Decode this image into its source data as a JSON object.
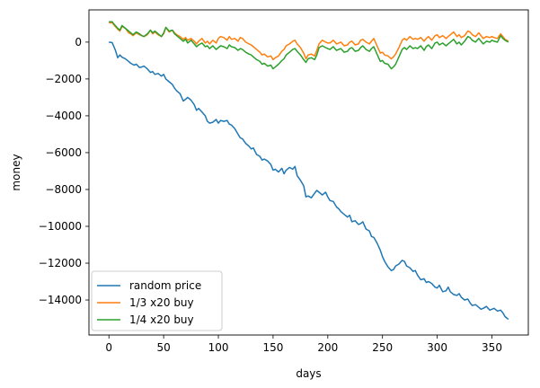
{
  "chart_data": {
    "type": "line",
    "title": "",
    "xlabel": "days",
    "ylabel": "money",
    "xlim": [
      -18.25,
      383.25
    ],
    "ylim": [
      -15900,
      1750
    ],
    "xticks": [
      0,
      50,
      100,
      150,
      200,
      250,
      300,
      350
    ],
    "yticks": [
      -14000,
      -12000,
      -10000,
      -8000,
      -6000,
      -4000,
      -2000,
      0
    ],
    "grid": false,
    "legend": {
      "placement": "lower-left"
    },
    "series": [
      {
        "name": "random price",
        "color": "#1f77b4",
        "x": [
          0,
          3,
          6,
          8,
          10,
          12,
          15,
          18,
          20,
          23,
          25,
          28,
          30,
          32,
          35,
          38,
          40,
          42,
          45,
          48,
          50,
          52,
          55,
          58,
          60,
          62,
          65,
          68,
          70,
          72,
          75,
          78,
          80,
          82,
          85,
          88,
          90,
          92,
          95,
          98,
          100,
          102,
          105,
          108,
          110,
          112,
          115,
          118,
          120,
          122,
          125,
          128,
          130,
          132,
          135,
          138,
          140,
          142,
          145,
          148,
          150,
          152,
          155,
          158,
          160,
          162,
          165,
          168,
          170,
          172,
          175,
          178,
          180,
          182,
          185,
          188,
          190,
          192,
          195,
          198,
          200,
          202,
          205,
          208,
          210,
          212,
          215,
          218,
          220,
          222,
          225,
          228,
          230,
          232,
          235,
          238,
          240,
          242,
          245,
          248,
          250,
          252,
          255,
          258,
          260,
          262,
          265,
          268,
          270,
          272,
          275,
          278,
          280,
          282,
          285,
          288,
          290,
          292,
          295,
          298,
          300,
          302,
          305,
          308,
          310,
          312,
          315,
          318,
          320,
          322,
          325,
          328,
          330,
          332,
          335,
          338,
          340,
          342,
          345,
          348,
          350,
          352,
          355,
          358,
          360,
          362,
          365
        ],
        "y": [
          0,
          -30,
          -450,
          -850,
          -700,
          -820,
          -900,
          -1050,
          -1150,
          -1250,
          -1200,
          -1380,
          -1350,
          -1300,
          -1450,
          -1650,
          -1600,
          -1750,
          -1700,
          -1850,
          -1750,
          -2000,
          -2150,
          -2300,
          -2500,
          -2650,
          -2800,
          -3200,
          -3100,
          -3000,
          -3150,
          -3400,
          -3700,
          -3600,
          -3800,
          -4000,
          -4300,
          -4400,
          -4350,
          -4200,
          -4400,
          -4250,
          -4300,
          -4250,
          -4450,
          -4500,
          -4700,
          -5000,
          -5200,
          -5250,
          -5500,
          -5650,
          -5800,
          -5750,
          -6100,
          -6200,
          -6400,
          -6350,
          -6450,
          -6650,
          -6950,
          -6900,
          -7050,
          -6850,
          -7150,
          -6950,
          -6800,
          -6900,
          -6750,
          -7250,
          -7500,
          -7800,
          -8400,
          -8350,
          -8450,
          -8200,
          -8050,
          -8150,
          -8300,
          -8150,
          -8400,
          -8600,
          -8650,
          -8950,
          -9050,
          -9200,
          -9350,
          -9500,
          -9400,
          -9750,
          -9700,
          -9900,
          -9850,
          -9750,
          -10150,
          -10250,
          -10550,
          -10600,
          -10900,
          -11300,
          -11650,
          -11900,
          -12200,
          -12400,
          -12350,
          -12150,
          -12050,
          -11850,
          -11900,
          -12150,
          -12250,
          -12450,
          -12400,
          -12650,
          -12900,
          -12850,
          -13050,
          -13000,
          -13100,
          -13300,
          -13350,
          -13200,
          -13550,
          -13500,
          -13300,
          -13550,
          -13700,
          -13750,
          -13650,
          -13850,
          -14000,
          -13950,
          -14150,
          -14300,
          -14250,
          -14400,
          -14500,
          -14450,
          -14350,
          -14550,
          -14500,
          -14450,
          -14600,
          -14550,
          -14700,
          -14900,
          -15050
        ]
      },
      {
        "name": "1/3 x20 buy",
        "color": "#ff7f0e",
        "x": [
          0,
          3,
          5,
          8,
          10,
          12,
          15,
          18,
          20,
          22,
          25,
          28,
          30,
          32,
          35,
          38,
          40,
          42,
          45,
          48,
          50,
          52,
          55,
          58,
          60,
          62,
          65,
          68,
          70,
          72,
          75,
          78,
          80,
          82,
          85,
          88,
          90,
          92,
          95,
          98,
          100,
          102,
          105,
          108,
          110,
          112,
          115,
          118,
          120,
          122,
          125,
          128,
          130,
          132,
          135,
          138,
          140,
          142,
          145,
          148,
          150,
          152,
          155,
          158,
          160,
          162,
          165,
          168,
          170,
          172,
          175,
          178,
          180,
          182,
          185,
          188,
          190,
          192,
          195,
          198,
          200,
          202,
          205,
          208,
          210,
          212,
          215,
          218,
          220,
          222,
          225,
          228,
          230,
          232,
          235,
          238,
          240,
          242,
          245,
          248,
          250,
          252,
          255,
          258,
          260,
          262,
          265,
          268,
          270,
          272,
          275,
          278,
          280,
          282,
          285,
          288,
          290,
          292,
          295,
          298,
          300,
          302,
          305,
          308,
          310,
          312,
          315,
          318,
          320,
          322,
          325,
          328,
          330,
          332,
          335,
          338,
          340,
          342,
          345,
          348,
          350,
          352,
          355,
          358,
          360,
          362,
          365
        ],
        "y": [
          1050,
          1050,
          900,
          700,
          600,
          850,
          750,
          500,
          450,
          350,
          500,
          400,
          350,
          300,
          400,
          650,
          450,
          550,
          400,
          300,
          450,
          800,
          550,
          650,
          500,
          400,
          300,
          150,
          250,
          100,
          200,
          50,
          -100,
          50,
          200,
          -50,
          50,
          -100,
          100,
          -50,
          200,
          300,
          250,
          100,
          300,
          150,
          200,
          50,
          250,
          200,
          0,
          -100,
          -150,
          -250,
          -400,
          -550,
          -700,
          -650,
          -800,
          -750,
          -950,
          -850,
          -750,
          -500,
          -400,
          -200,
          -100,
          50,
          100,
          -100,
          -300,
          -600,
          -900,
          -700,
          -650,
          -750,
          -450,
          -100,
          100,
          0,
          -50,
          -50,
          100,
          -100,
          -50,
          0,
          -200,
          -150,
          0,
          50,
          -150,
          -100,
          100,
          150,
          0,
          -100,
          50,
          200,
          -200,
          -600,
          -550,
          -700,
          -750,
          -900,
          -800,
          -650,
          -300,
          100,
          200,
          100,
          300,
          150,
          200,
          150,
          250,
          50,
          200,
          300,
          100,
          350,
          400,
          250,
          350,
          200,
          300,
          400,
          550,
          300,
          400,
          250,
          350,
          600,
          550,
          400,
          300,
          500,
          350,
          200,
          300,
          250,
          300,
          250,
          200,
          450,
          300,
          150,
          50
        ]
      },
      {
        "name": "1/4 x20 buy",
        "color": "#2ca02c",
        "x": [
          0,
          3,
          5,
          8,
          10,
          12,
          15,
          18,
          20,
          22,
          25,
          28,
          30,
          32,
          35,
          38,
          40,
          42,
          45,
          48,
          50,
          52,
          55,
          58,
          60,
          62,
          65,
          68,
          70,
          72,
          75,
          78,
          80,
          82,
          85,
          88,
          90,
          92,
          95,
          98,
          100,
          102,
          105,
          108,
          110,
          112,
          115,
          118,
          120,
          122,
          125,
          128,
          130,
          132,
          135,
          138,
          140,
          142,
          145,
          148,
          150,
          152,
          155,
          158,
          160,
          162,
          165,
          168,
          170,
          172,
          175,
          178,
          180,
          182,
          185,
          188,
          190,
          192,
          195,
          198,
          200,
          202,
          205,
          208,
          210,
          212,
          215,
          218,
          220,
          222,
          225,
          228,
          230,
          232,
          235,
          238,
          240,
          242,
          245,
          248,
          250,
          252,
          255,
          258,
          260,
          262,
          265,
          268,
          270,
          272,
          275,
          278,
          280,
          282,
          285,
          288,
          290,
          292,
          295,
          298,
          300,
          302,
          305,
          308,
          310,
          312,
          315,
          318,
          320,
          322,
          325,
          328,
          330,
          332,
          335,
          338,
          340,
          342,
          345,
          348,
          350,
          352,
          355,
          358,
          360,
          362,
          365
        ],
        "y": [
          1100,
          1100,
          950,
          750,
          650,
          900,
          750,
          600,
          500,
          400,
          550,
          450,
          350,
          300,
          450,
          650,
          500,
          600,
          450,
          300,
          500,
          800,
          600,
          650,
          450,
          350,
          200,
          50,
          150,
          -50,
          100,
          -100,
          -250,
          -150,
          -50,
          -250,
          -200,
          -350,
          -200,
          -400,
          -300,
          -200,
          -250,
          -350,
          -150,
          -250,
          -300,
          -450,
          -350,
          -400,
          -550,
          -650,
          -700,
          -800,
          -950,
          -1050,
          -1200,
          -1150,
          -1300,
          -1250,
          -1450,
          -1350,
          -1200,
          -1000,
          -900,
          -700,
          -550,
          -400,
          -350,
          -500,
          -700,
          -950,
          -1100,
          -900,
          -850,
          -950,
          -700,
          -300,
          -200,
          -300,
          -350,
          -400,
          -250,
          -450,
          -400,
          -350,
          -550,
          -500,
          -350,
          -300,
          -500,
          -450,
          -300,
          -200,
          -400,
          -500,
          -350,
          -250,
          -650,
          -1050,
          -1000,
          -1150,
          -1200,
          -1450,
          -1350,
          -1200,
          -800,
          -400,
          -300,
          -400,
          -200,
          -350,
          -300,
          -350,
          -200,
          -450,
          -250,
          -150,
          -350,
          -50,
          0,
          -150,
          -50,
          -200,
          -100,
          0,
          150,
          -100,
          0,
          -150,
          50,
          300,
          250,
          100,
          0,
          200,
          50,
          -100,
          50,
          0,
          100,
          50,
          0,
          350,
          200,
          100,
          0
        ]
      }
    ]
  }
}
